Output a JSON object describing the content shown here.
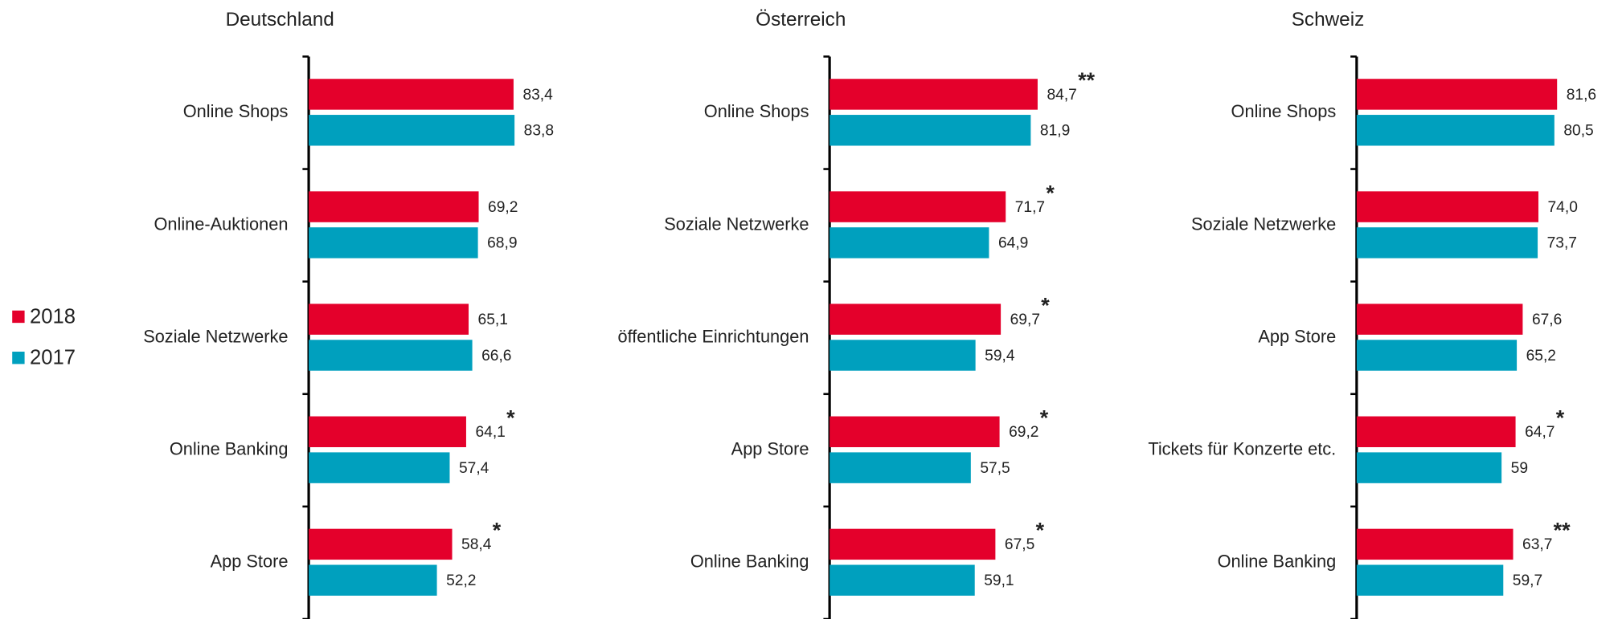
{
  "chart_data": [
    {
      "type": "bar",
      "orientation": "horizontal",
      "title": "Deutschland",
      "categories": [
        "Online Shops",
        "Online-Auktionen",
        "Soziale Netzwerke",
        "Online Banking",
        "App Store"
      ],
      "series": [
        {
          "name": "2018",
          "color": "#e4002b",
          "values": [
            83.4,
            69.2,
            65.1,
            64.1,
            58.4
          ],
          "value_labels": [
            "83,4",
            "69,2",
            "65,1",
            "64,1",
            "58,4"
          ],
          "annotations": [
            null,
            null,
            null,
            "*",
            "*"
          ]
        },
        {
          "name": "2017",
          "color": "#00a0be",
          "values": [
            83.8,
            68.9,
            66.6,
            57.4,
            52.2
          ],
          "value_labels": [
            "83,8",
            "68,9",
            "66,6",
            "57,4",
            "52,2"
          ]
        }
      ],
      "xlim": [
        0,
        100
      ]
    },
    {
      "type": "bar",
      "orientation": "horizontal",
      "title": "Österreich",
      "categories": [
        "Online Shops",
        "Soziale Netzwerke",
        "öffentliche Einrichtungen",
        "App Store",
        "Online Banking"
      ],
      "series": [
        {
          "name": "2018",
          "color": "#e4002b",
          "values": [
            84.7,
            71.7,
            69.7,
            69.2,
            67.5
          ],
          "value_labels": [
            "84,7",
            "71,7",
            "69,7",
            "69,2",
            "67,5"
          ],
          "annotations": [
            "**",
            "*",
            "*",
            "*",
            "*"
          ]
        },
        {
          "name": "2017",
          "color": "#00a0be",
          "values": [
            81.9,
            64.9,
            59.4,
            57.5,
            59.1
          ],
          "value_labels": [
            "81,9",
            "64,9",
            "59,4",
            "57,5",
            "59,1"
          ]
        }
      ],
      "xlim": [
        0,
        100
      ]
    },
    {
      "type": "bar",
      "orientation": "horizontal",
      "title": "Schweiz",
      "categories": [
        "Online Shops",
        "Soziale Netzwerke",
        "App Store",
        "Tickets für Konzerte etc.",
        "Online Banking"
      ],
      "series": [
        {
          "name": "2018",
          "color": "#e4002b",
          "values": [
            81.6,
            74.0,
            67.6,
            64.7,
            63.7
          ],
          "value_labels": [
            "81,6",
            "74,0",
            "67,6",
            "64,7",
            "63,7"
          ],
          "annotations": [
            null,
            null,
            null,
            "*",
            "**"
          ]
        },
        {
          "name": "2017",
          "color": "#00a0be",
          "values": [
            80.5,
            73.7,
            65.2,
            59,
            59.7
          ],
          "value_labels": [
            "80,5",
            "73,7",
            "65,2",
            "59",
            "59,7"
          ]
        }
      ],
      "xlim": [
        0,
        100
      ]
    }
  ]
}
